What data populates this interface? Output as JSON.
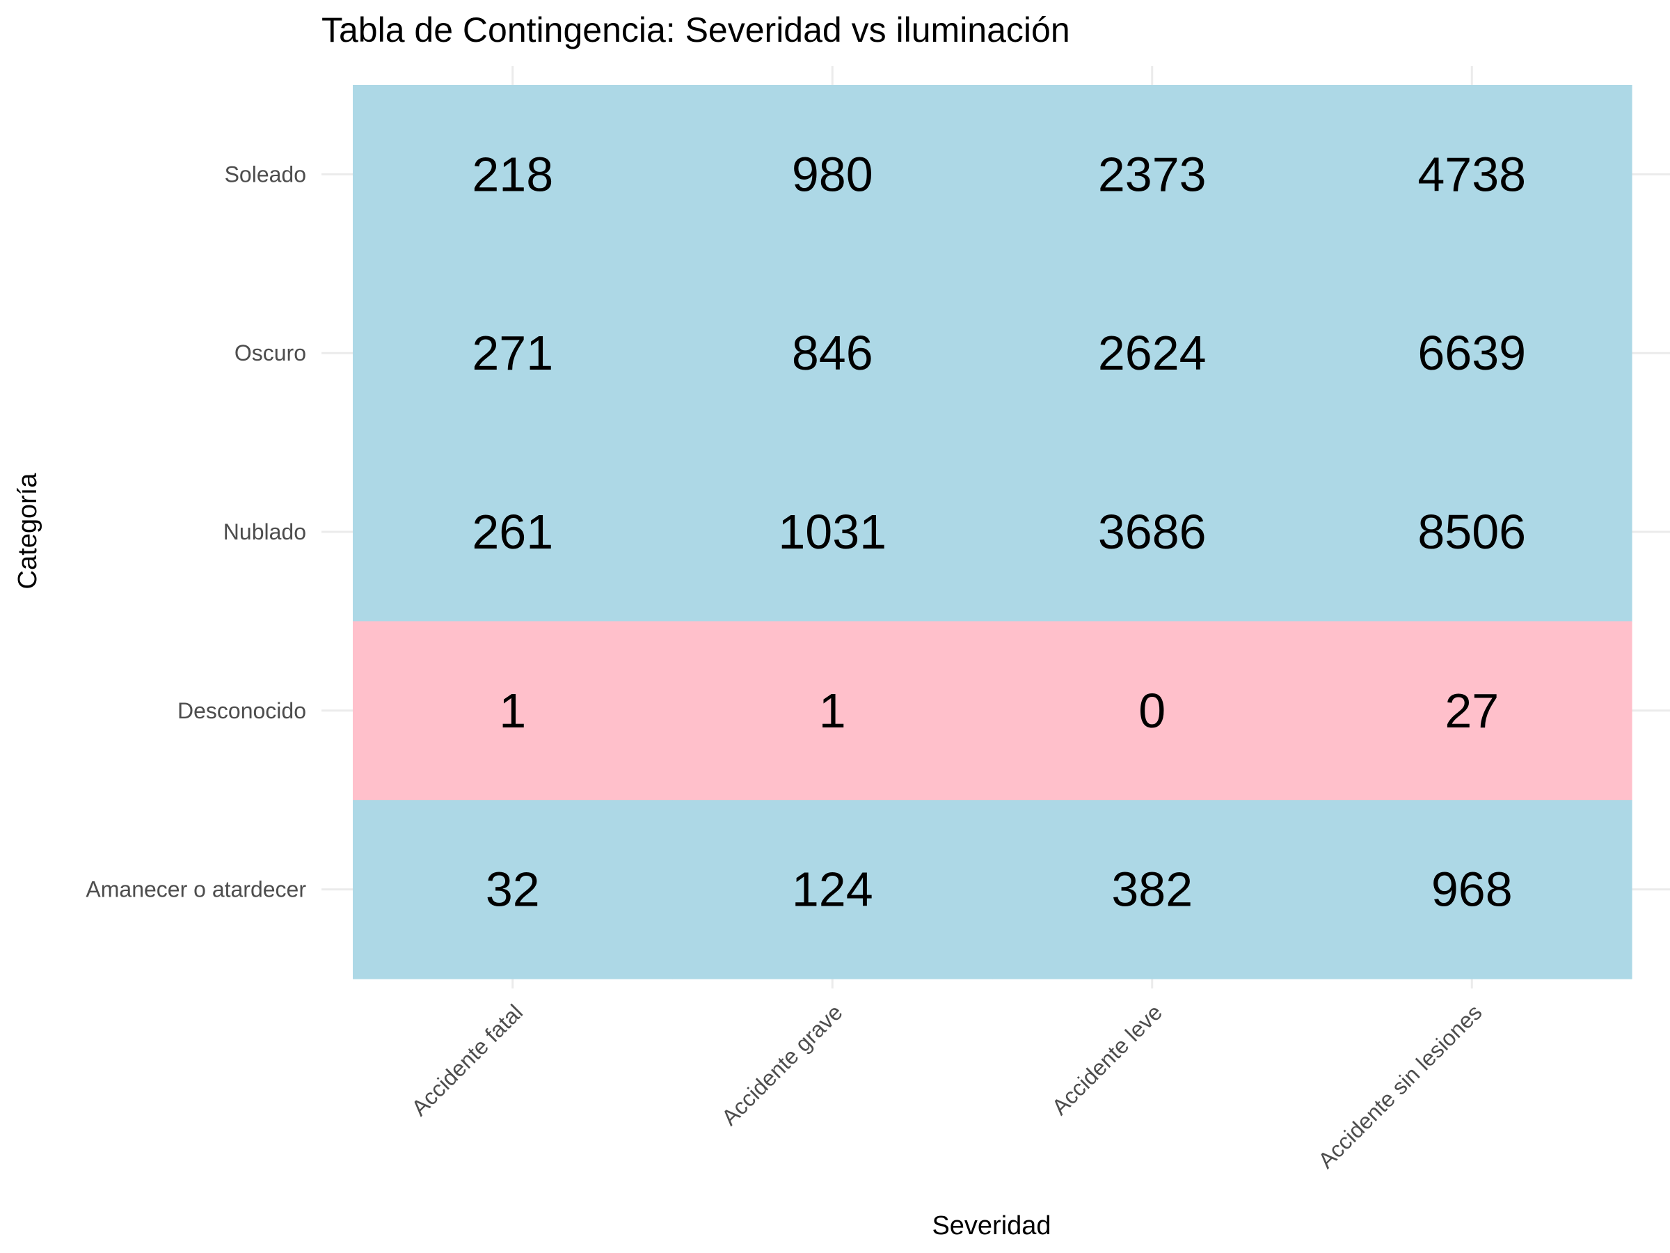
{
  "chart_data": {
    "type": "heatmap",
    "title": "Tabla de Contingencia: Severidad vs iluminación",
    "xlabel": "Severidad",
    "ylabel": "Categoría",
    "x_categories": [
      "Accidente fatal",
      "Accidente grave",
      "Accidente leve",
      "Accidente sin lesiones"
    ],
    "y_categories": [
      "Soleado",
      "Oscuro",
      "Nublado",
      "Desconocido",
      "Amanecer o atardecer"
    ],
    "values": [
      [
        218,
        980,
        2373,
        4738
      ],
      [
        271,
        846,
        2624,
        6639
      ],
      [
        261,
        1031,
        3686,
        8506
      ],
      [
        1,
        1,
        0,
        27
      ],
      [
        32,
        124,
        382,
        968
      ]
    ],
    "fill_rule": "values below 30 are highlighted",
    "threshold": 30,
    "colors": {
      "high": "#add8e6",
      "low": "#ffc0cb"
    },
    "grid": true,
    "legend": "none"
  }
}
